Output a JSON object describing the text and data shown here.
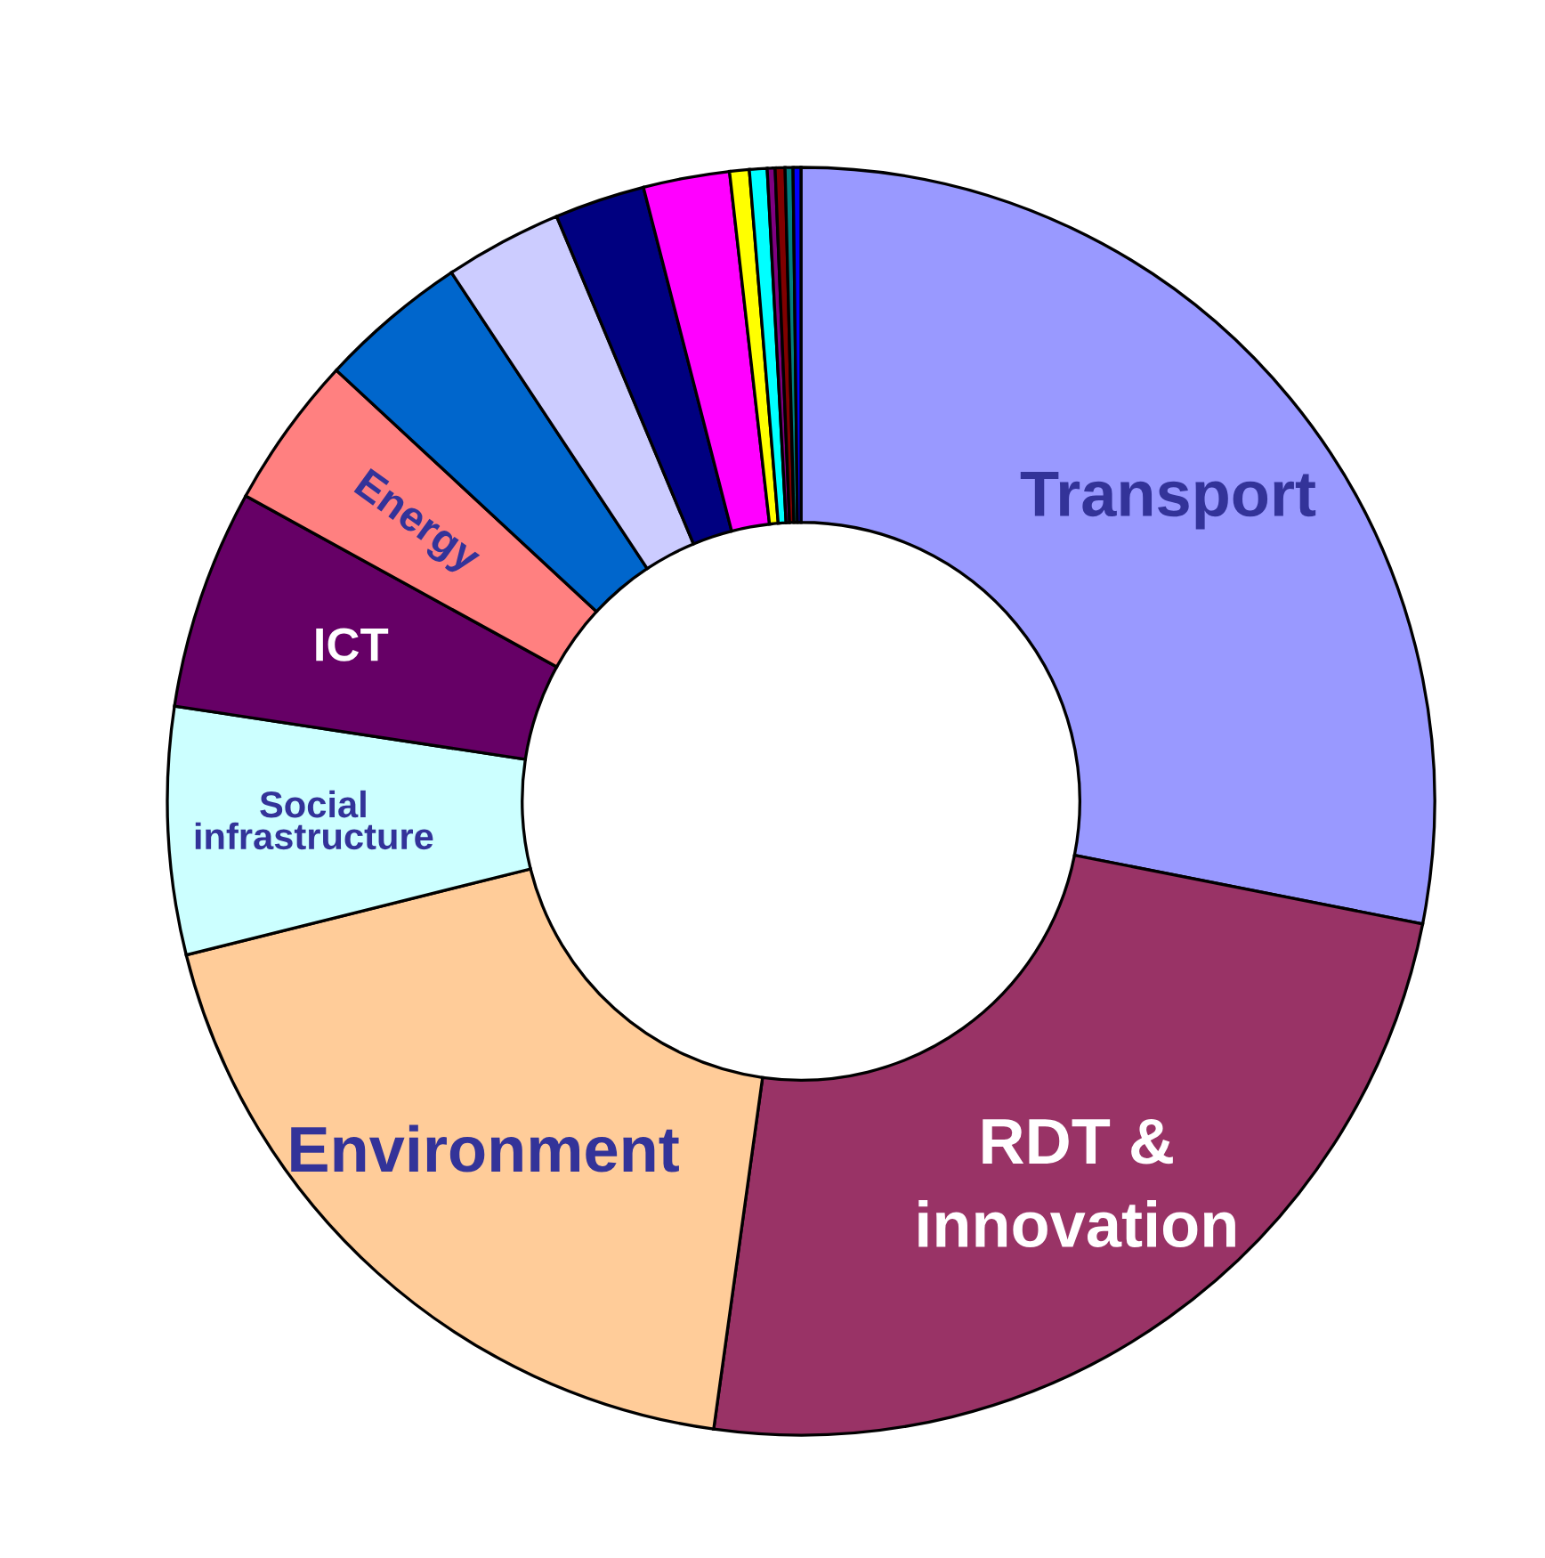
{
  "chart_data": {
    "type": "donut",
    "categories": [
      "Transport",
      "RDT &\ninnovation",
      "Environment",
      "Social\ninfrastructure",
      "ICT",
      "Energy",
      null,
      null,
      null,
      null,
      null,
      null,
      null,
      null,
      null,
      null
    ],
    "values": [
      28.1,
      24.1,
      18.9,
      6.3,
      5.6,
      3.9,
      3.8,
      3.0,
      2.3,
      2.2,
      0.5,
      0.45,
      0.2,
      0.25,
      0.2,
      0.2
    ],
    "colors": [
      "#9999ff",
      "#993366",
      "#ffcc99",
      "#ccffff",
      "#660066",
      "#ff8080",
      "#0066cc",
      "#ccccff",
      "#000080",
      "#ff00ff",
      "#ffff00",
      "#00ffff",
      "#800080",
      "#800000",
      "#008080",
      "#0000ff"
    ]
  }
}
